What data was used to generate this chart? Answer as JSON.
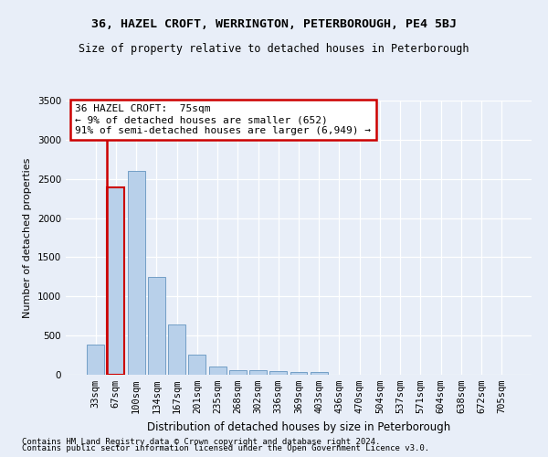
{
  "title": "36, HAZEL CROFT, WERRINGTON, PETERBOROUGH, PE4 5BJ",
  "subtitle": "Size of property relative to detached houses in Peterborough",
  "xlabel": "Distribution of detached houses by size in Peterborough",
  "ylabel": "Number of detached properties",
  "categories": [
    "33sqm",
    "67sqm",
    "100sqm",
    "134sqm",
    "167sqm",
    "201sqm",
    "235sqm",
    "268sqm",
    "302sqm",
    "336sqm",
    "369sqm",
    "403sqm",
    "436sqm",
    "470sqm",
    "504sqm",
    "537sqm",
    "571sqm",
    "604sqm",
    "638sqm",
    "672sqm",
    "705sqm"
  ],
  "values": [
    390,
    2390,
    2600,
    1250,
    640,
    260,
    100,
    60,
    60,
    45,
    35,
    35,
    0,
    0,
    0,
    0,
    0,
    0,
    0,
    0,
    0
  ],
  "bar_color": "#b8d0ea",
  "bar_edge_color": "#6494c0",
  "highlight_index": 1,
  "highlight_edge_color": "#cc0000",
  "annotation_text": "36 HAZEL CROFT:  75sqm\n← 9% of detached houses are smaller (652)\n91% of semi-detached houses are larger (6,949) →",
  "annotation_box_edge_color": "#cc0000",
  "ylim": [
    0,
    3500
  ],
  "yticks": [
    0,
    500,
    1000,
    1500,
    2000,
    2500,
    3000,
    3500
  ],
  "bg_color": "#e8eef8",
  "plot_bg_color": "#e8eef8",
  "grid_color": "#ffffff",
  "footer_line1": "Contains HM Land Registry data © Crown copyright and database right 2024.",
  "footer_line2": "Contains public sector information licensed under the Open Government Licence v3.0.",
  "title_fontsize": 9.5,
  "subtitle_fontsize": 8.5,
  "xlabel_fontsize": 8.5,
  "ylabel_fontsize": 8.0,
  "tick_fontsize": 7.5,
  "annotation_fontsize": 8.0,
  "footer_fontsize": 6.5
}
